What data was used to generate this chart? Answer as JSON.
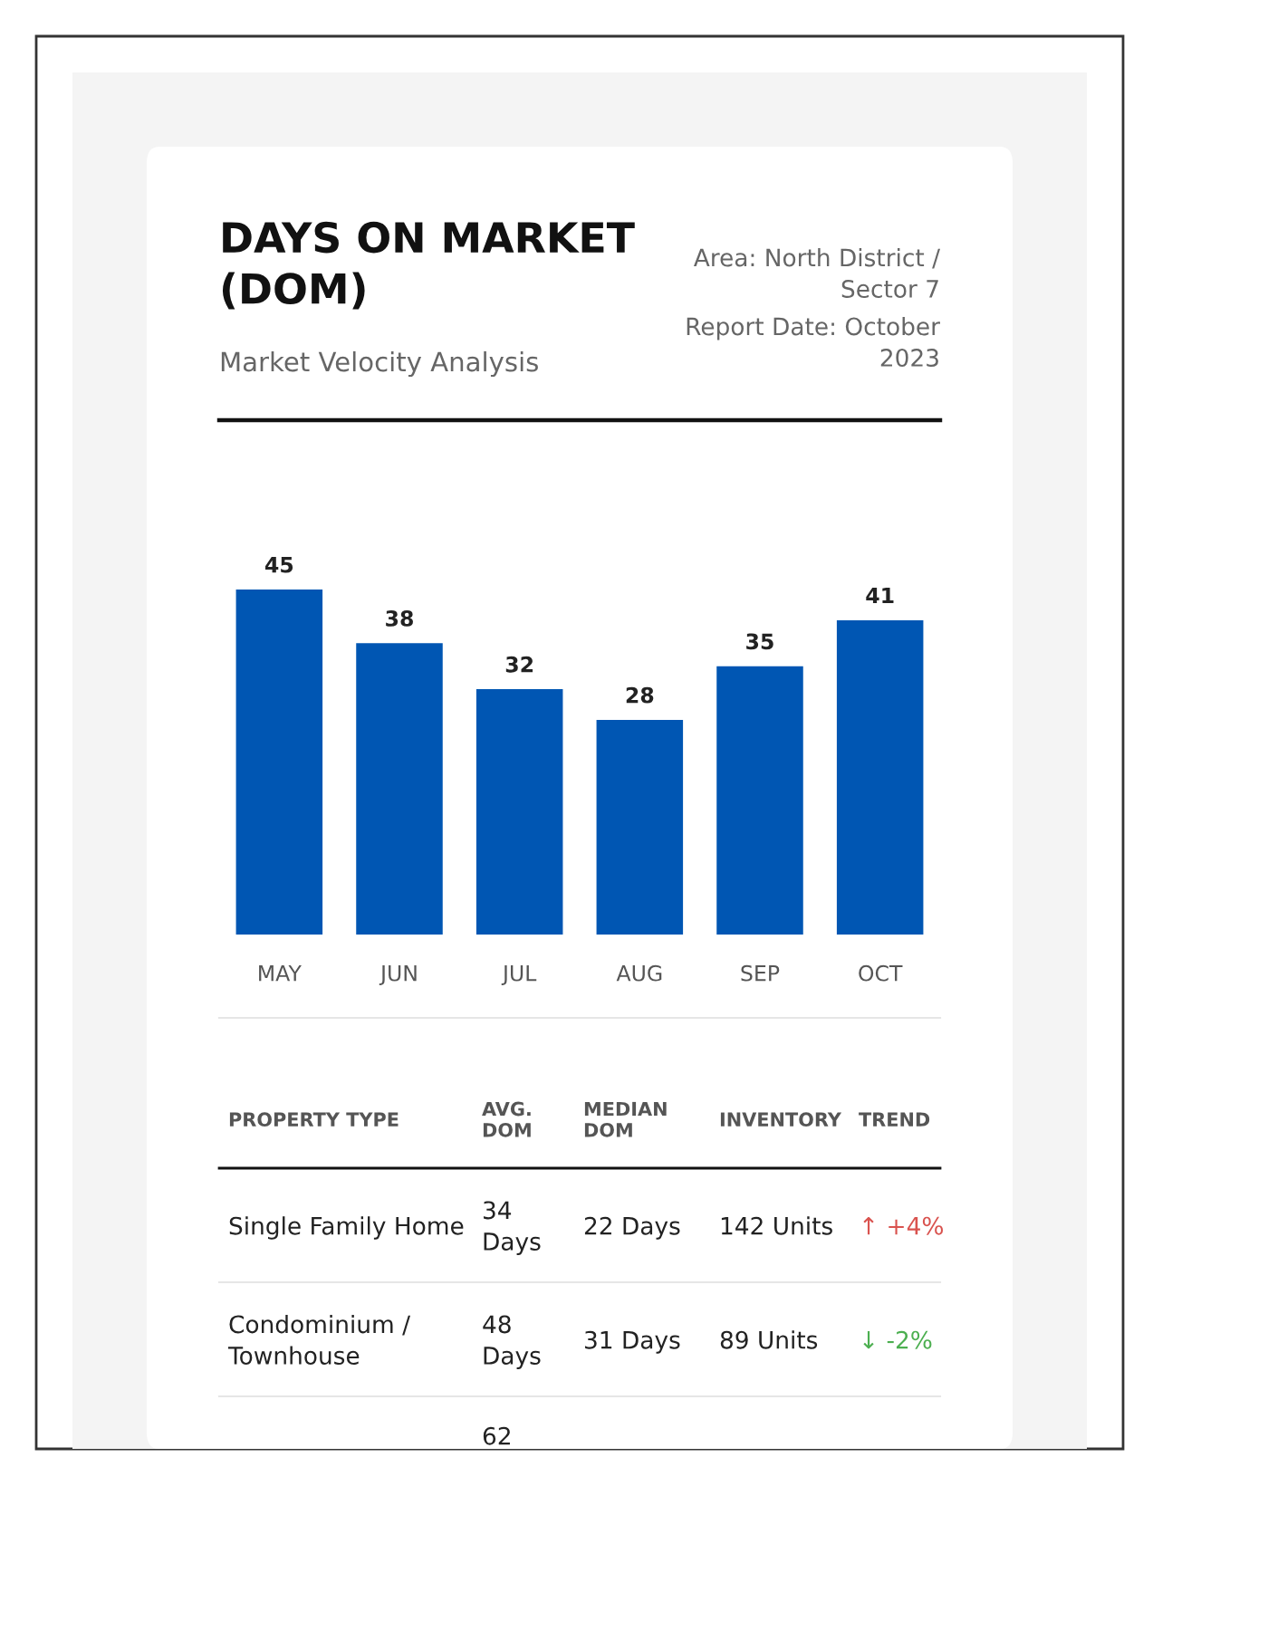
{
  "chart_data": [
    {
      "type": "bar",
      "title": "DAYS ON MARKET\n(DOM)",
      "subtitle": "Market Velocity Analysis",
      "annotations": [
        "Area: North District /\nSector 7",
        "Report Date: October\n2023"
      ],
      "categories": [
        "MAY",
        "JUN",
        "JUL",
        "AUG",
        "SEP",
        "OCT"
      ],
      "values": [
        45,
        38,
        32,
        28,
        35,
        41
      ],
      "color": "#0056b3",
      "data_labels": true
    },
    {
      "type": "other",
      "annotations": [
        "PROPERTY TYPE",
        "AVG.\nDOM",
        "MEDIAN\nDOM",
        "INVENTORY",
        "TREND",
        "Single Family Home",
        "34\nDays",
        "22 Days",
        "142 Units",
        "↑ +4%",
        "Condominium /\nTownhouse",
        "48\nDays",
        "31 Days",
        "89 Units",
        "↓ -2%",
        "62"
      ]
    }
  ]
}
